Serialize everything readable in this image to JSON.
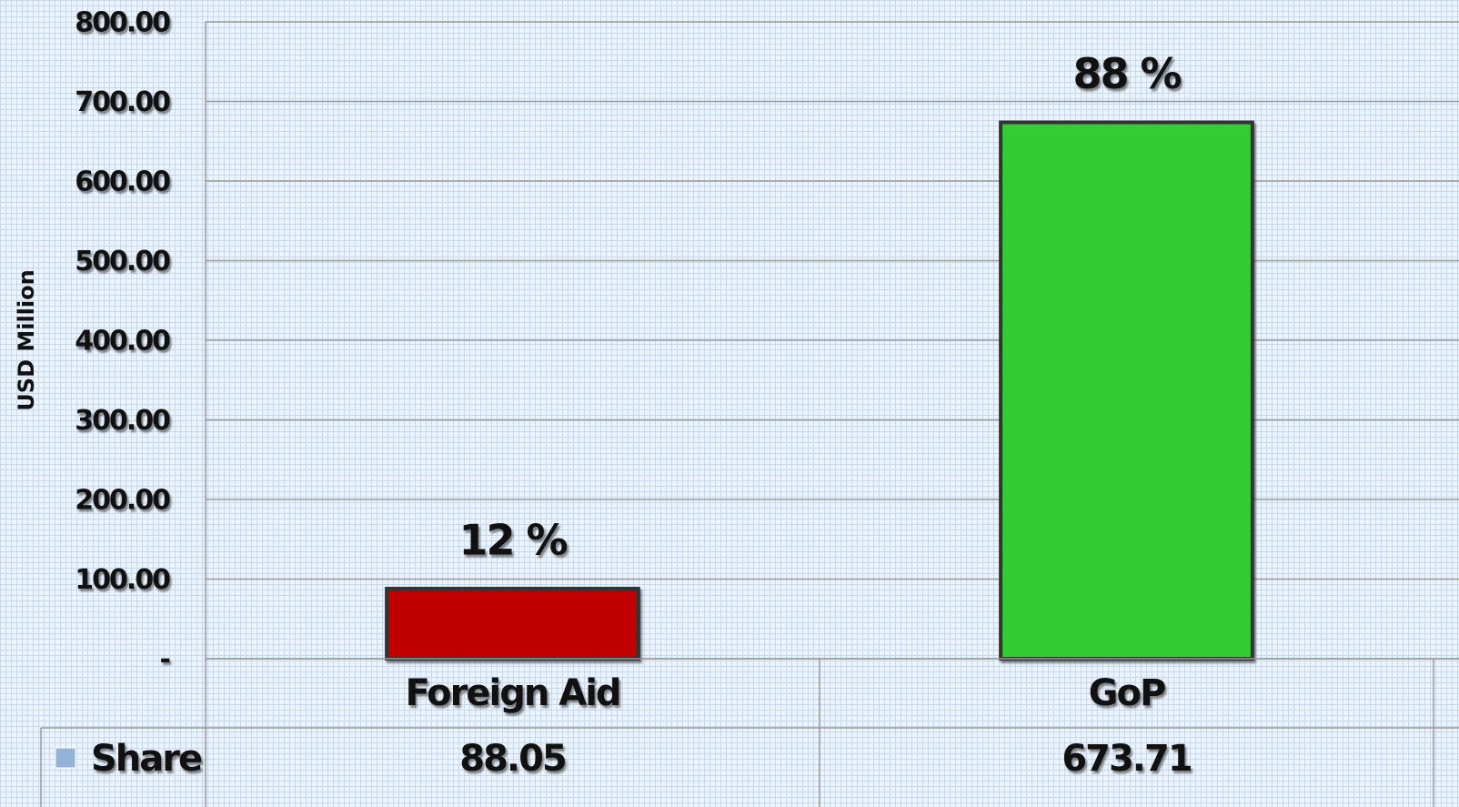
{
  "chart_data": {
    "type": "bar",
    "y_axis_label": "USD Million",
    "categories": [
      "Foreign Aid",
      "GoP"
    ],
    "series": [
      {
        "name": "Share",
        "color": "#95b3d7",
        "values": [
          88.05,
          673.71
        ]
      }
    ],
    "bar_colors": [
      "#c00000",
      "#33cc33"
    ],
    "percent_labels": [
      "12 %",
      "88 %"
    ],
    "ylim": [
      0,
      800
    ],
    "yticks": [
      {
        "value": 0,
        "label": "-"
      },
      {
        "value": 100,
        "label": "100.00"
      },
      {
        "value": 200,
        "label": "200.00"
      },
      {
        "value": 300,
        "label": "300.00"
      },
      {
        "value": 400,
        "label": "400.00"
      },
      {
        "value": 500,
        "label": "500.00"
      },
      {
        "value": 600,
        "label": "600.00"
      },
      {
        "value": 700,
        "label": "700.00"
      },
      {
        "value": 800,
        "label": "800.00"
      }
    ],
    "grid": true
  }
}
